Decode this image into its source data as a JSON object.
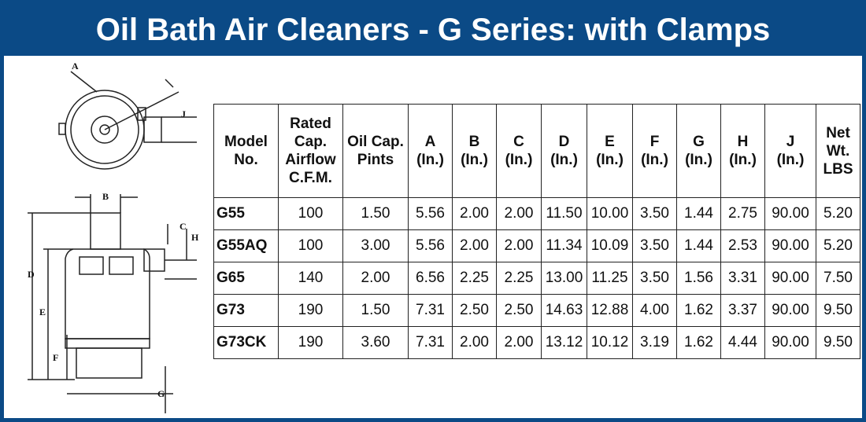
{
  "header": {
    "title": "Oil Bath Air Cleaners - G Series: with Clamps"
  },
  "diagram": {
    "labels": {
      "a": "A",
      "j": "J",
      "b": "B",
      "c": "C",
      "h": "H",
      "d": "D",
      "e": "E",
      "f": "F",
      "g": "G"
    }
  },
  "table": {
    "columns": [
      [
        "Model",
        "No."
      ],
      [
        "Rated",
        "Cap.",
        "Airflow",
        "C.F.M."
      ],
      [
        "Oil Cap.",
        "Pints"
      ],
      [
        "A",
        "(In.)"
      ],
      [
        "B",
        "(In.)"
      ],
      [
        "C",
        "(In.)"
      ],
      [
        "D",
        "(In.)"
      ],
      [
        "E",
        "(In.)"
      ],
      [
        "F",
        "(In.)"
      ],
      [
        "G",
        "(In.)"
      ],
      [
        "H",
        "(In.)"
      ],
      [
        "J",
        "(In.)"
      ],
      [
        "Net",
        "Wt.",
        "LBS"
      ]
    ],
    "rows": [
      [
        "G55",
        "100",
        "1.50",
        "5.56",
        "2.00",
        "2.00",
        "11.50",
        "10.00",
        "3.50",
        "1.44",
        "2.75",
        "90.00",
        "5.20"
      ],
      [
        "G55AQ",
        "100",
        "3.00",
        "5.56",
        "2.00",
        "2.00",
        "11.34",
        "10.09",
        "3.50",
        "1.44",
        "2.53",
        "90.00",
        "5.20"
      ],
      [
        "G65",
        "140",
        "2.00",
        "6.56",
        "2.25",
        "2.25",
        "13.00",
        "11.25",
        "3.50",
        "1.56",
        "3.31",
        "90.00",
        "7.50"
      ],
      [
        "G73",
        "190",
        "1.50",
        "7.31",
        "2.50",
        "2.50",
        "14.63",
        "12.88",
        "4.00",
        "1.62",
        "3.37",
        "90.00",
        "9.50"
      ],
      [
        "G73CK",
        "190",
        "3.60",
        "7.31",
        "2.00",
        "2.00",
        "13.12",
        "10.12",
        "3.19",
        "1.62",
        "4.44",
        "90.00",
        "9.50"
      ]
    ]
  }
}
